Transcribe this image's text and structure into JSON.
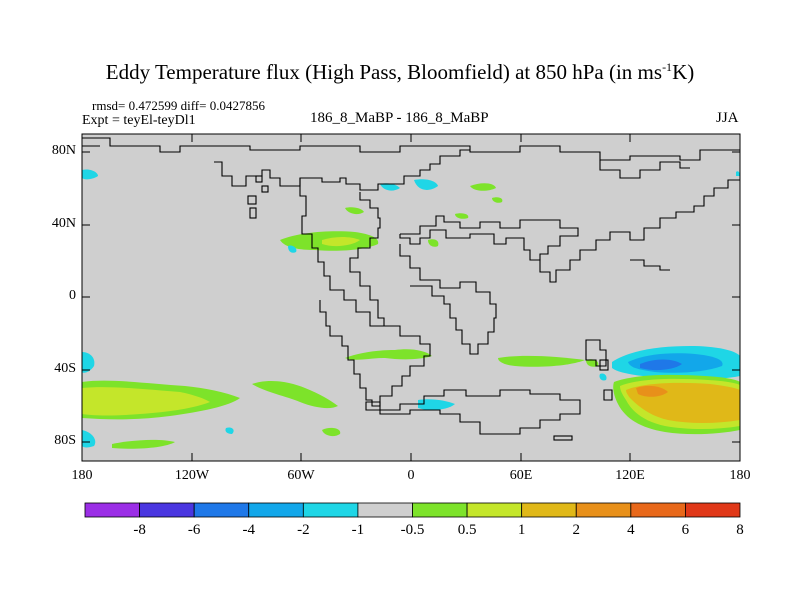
{
  "title": {
    "main": "Eddy Temperature flux (High Pass, Bloomfield) at 850 hPa (in ms",
    "sup": "-1",
    "end": "K)"
  },
  "stats": "rmsd= 0.472599 diff= 0.0427856",
  "expt": "Expt = teyEl-teyDl1",
  "comparison": "186_8_MaBP - 186_8_MaBP",
  "season": "JJA",
  "y_ticks": [
    "80N",
    "40N",
    "0",
    "40S",
    "80S"
  ],
  "x_ticks": [
    "180",
    "120W",
    "60W",
    "0",
    "60E",
    "120E",
    "180"
  ],
  "colorbar": {
    "colors": [
      "#9b2ee6",
      "#4a36e0",
      "#1f78e8",
      "#12a7ea",
      "#1fd6e6",
      "#cfcfcf",
      "#7de32a",
      "#c4e62a",
      "#e0b818",
      "#e8901a",
      "#e8681a",
      "#e03818"
    ],
    "labels": [
      "-8",
      "-6",
      "-4",
      "-2",
      "-1",
      "-0.5",
      "0.5",
      "1",
      "2",
      "4",
      "6",
      "8"
    ]
  },
  "palette": {
    "land_background": "#cfcfcf",
    "coast": "#000000"
  }
}
